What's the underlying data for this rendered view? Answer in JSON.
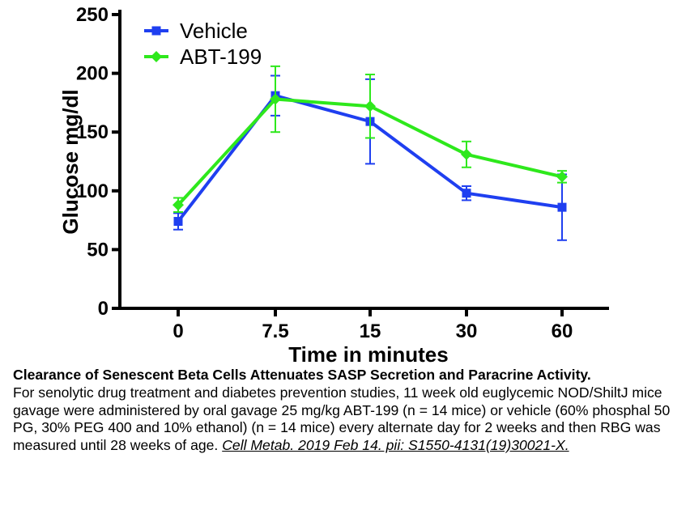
{
  "chart_data": {
    "type": "line",
    "categories": [
      "0",
      "7.5",
      "15",
      "30",
      "60"
    ],
    "series": [
      {
        "name": "Vehicle",
        "color": "#1f3ff0",
        "marker": "square",
        "values": [
          74,
          181,
          159,
          98,
          86
        ],
        "errors": [
          7,
          17,
          36,
          6,
          28
        ]
      },
      {
        "name": "ABT-199",
        "color": "#2ee81c",
        "marker": "diamond",
        "values": [
          88,
          178,
          172,
          131,
          112
        ],
        "errors": [
          6,
          28,
          27,
          11,
          5
        ]
      }
    ],
    "xlabel": "Time in minutes",
    "ylabel": "Glucose mg/dl",
    "ylim": [
      0,
      250
    ],
    "yticks": [
      0,
      50,
      100,
      150,
      200,
      250
    ],
    "legend": "top-left",
    "grid": false
  },
  "caption": {
    "title": "Clearance of Senescent Beta Cells Attenuates SASP Secretion and Paracrine Activity.",
    "body": "For senolytic drug treatment and diabetes prevention studies, 11 week old euglycemic NOD/ShiltJ mice gavage were administered by oral gavage 25 mg/kg ABT-199 (n = 14 mice) or vehicle (60% phosphal 50 PG, 30% PEG 400 and 10% ethanol) (n = 14 mice) every alternate day for 2 weeks and then RBG was measured until 28 weeks of age.",
    "citation": "Cell Metab. 2019 Feb 14. pii: S1550-4131(19)30021-X."
  }
}
